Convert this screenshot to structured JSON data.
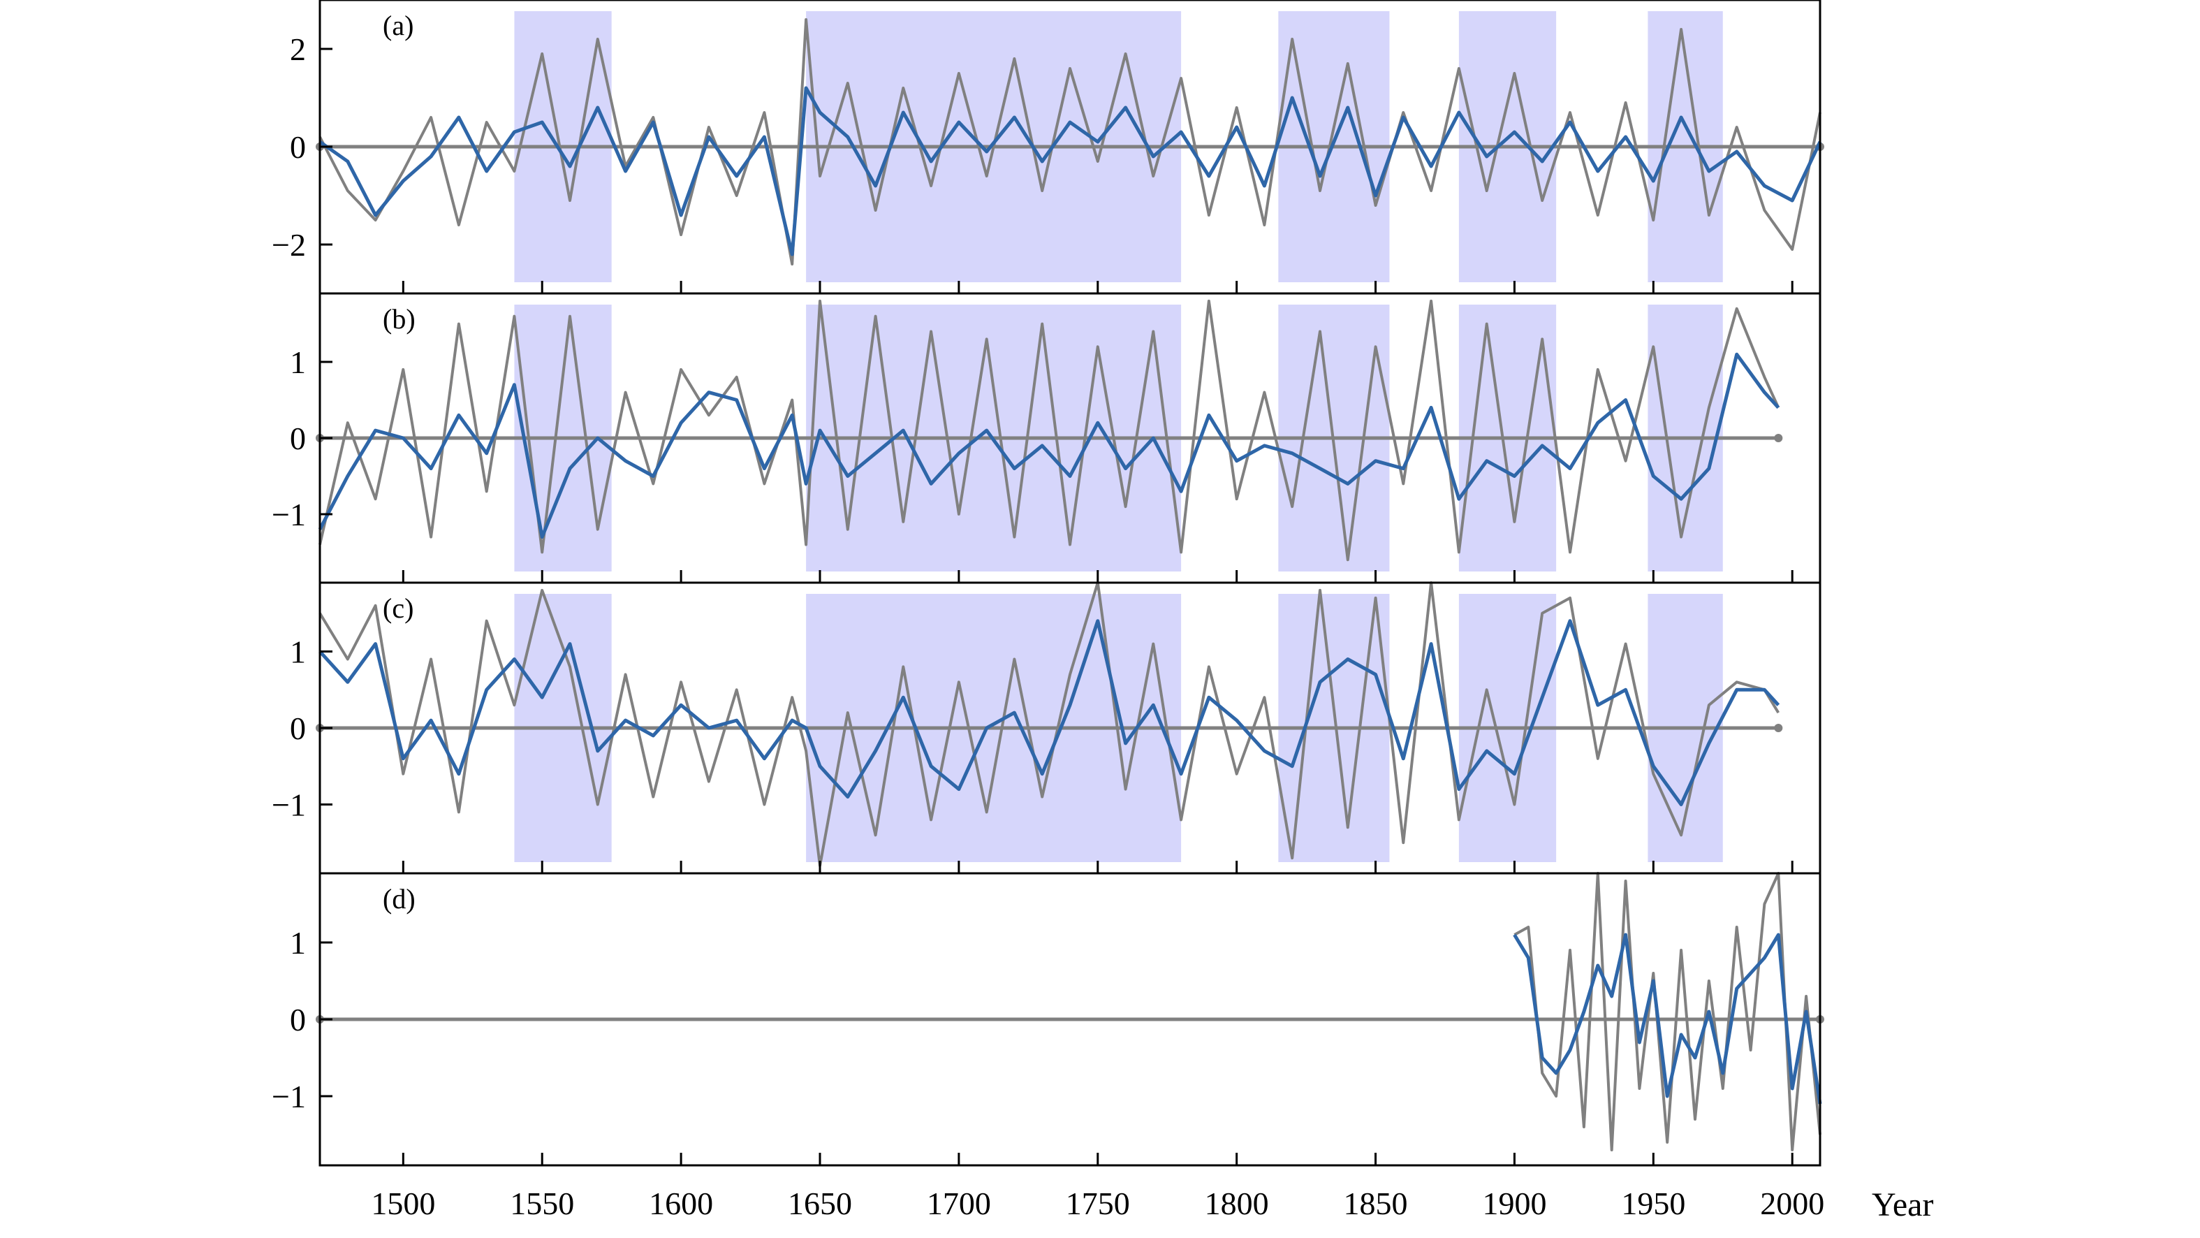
{
  "chart_data": {
    "type": "line",
    "x_label": "Year",
    "x_range": [
      1470,
      2010
    ],
    "x_ticks": [
      1500,
      1550,
      1600,
      1650,
      1700,
      1750,
      1800,
      1850,
      1900,
      1950,
      2000
    ],
    "x_tick_labels": [
      "1500",
      "1550",
      "1600",
      "1650",
      "1700",
      "1750",
      "1800",
      "1850",
      "1900",
      "1950",
      "2000"
    ],
    "shaded_periods": [
      [
        1540,
        1575
      ],
      [
        1645,
        1780
      ],
      [
        1815,
        1855
      ],
      [
        1880,
        1915
      ],
      [
        1948,
        1975
      ]
    ],
    "colors": {
      "annual": "#808080",
      "smoothed": "#2e66a8",
      "shade": "#d6d6fb",
      "zero_line": "#808080",
      "axes": "#000000"
    },
    "panels": [
      {
        "label": "(a)",
        "ylim": [
          -3,
          3
        ],
        "y_ticks": [
          -2,
          0,
          2
        ],
        "y_tick_labels": [
          "−2",
          "0",
          "2"
        ],
        "shaded": true,
        "series_years": [
          1470,
          2010
        ],
        "series": [
          {
            "name": "annual",
            "x": [
              1470,
              1480,
              1490,
              1500,
              1510,
              1520,
              1530,
              1540,
              1550,
              1560,
              1570,
              1580,
              1590,
              1600,
              1610,
              1620,
              1630,
              1640,
              1645,
              1650,
              1660,
              1670,
              1680,
              1690,
              1700,
              1710,
              1720,
              1730,
              1740,
              1750,
              1760,
              1770,
              1780,
              1790,
              1800,
              1810,
              1820,
              1830,
              1840,
              1850,
              1860,
              1870,
              1880,
              1890,
              1900,
              1910,
              1920,
              1930,
              1940,
              1950,
              1960,
              1970,
              1980,
              1990,
              2000,
              2010
            ],
            "y": [
              0.2,
              -0.9,
              -1.5,
              -0.5,
              0.6,
              -1.6,
              0.5,
              -0.5,
              1.9,
              -1.1,
              2.2,
              -0.4,
              0.6,
              -1.8,
              0.4,
              -1.0,
              0.7,
              -2.4,
              2.6,
              -0.6,
              1.3,
              -1.3,
              1.2,
              -0.8,
              1.5,
              -0.6,
              1.8,
              -0.9,
              1.6,
              -0.3,
              1.9,
              -0.6,
              1.4,
              -1.4,
              0.8,
              -1.6,
              2.2,
              -0.9,
              1.7,
              -1.2,
              0.7,
              -0.9,
              1.6,
              -0.9,
              1.5,
              -1.1,
              0.7,
              -1.4,
              0.9,
              -1.5,
              2.4,
              -1.4,
              0.4,
              -1.3,
              -2.1,
              0.7
            ]
          },
          {
            "name": "smoothed",
            "x": [
              1470,
              1480,
              1490,
              1500,
              1510,
              1520,
              1530,
              1540,
              1550,
              1560,
              1570,
              1580,
              1590,
              1600,
              1610,
              1620,
              1630,
              1640,
              1645,
              1650,
              1660,
              1670,
              1680,
              1690,
              1700,
              1710,
              1720,
              1730,
              1740,
              1750,
              1760,
              1770,
              1780,
              1790,
              1800,
              1810,
              1820,
              1830,
              1840,
              1850,
              1860,
              1870,
              1880,
              1890,
              1900,
              1910,
              1920,
              1930,
              1940,
              1950,
              1960,
              1970,
              1980,
              1990,
              2000,
              2010
            ],
            "y": [
              0.1,
              -0.3,
              -1.4,
              -0.7,
              -0.2,
              0.6,
              -0.5,
              0.3,
              0.5,
              -0.4,
              0.8,
              -0.5,
              0.5,
              -1.4,
              0.2,
              -0.6,
              0.2,
              -2.2,
              1.2,
              0.7,
              0.2,
              -0.8,
              0.7,
              -0.3,
              0.5,
              -0.1,
              0.6,
              -0.3,
              0.5,
              0.1,
              0.8,
              -0.2,
              0.3,
              -0.6,
              0.4,
              -0.8,
              1.0,
              -0.6,
              0.8,
              -1.0,
              0.6,
              -0.4,
              0.7,
              -0.2,
              0.3,
              -0.3,
              0.5,
              -0.5,
              0.2,
              -0.7,
              0.6,
              -0.5,
              -0.1,
              -0.8,
              -1.1,
              0.1
            ]
          }
        ]
      },
      {
        "label": "(b)",
        "ylim": [
          -1.9,
          1.9
        ],
        "y_ticks": [
          -1,
          0,
          1
        ],
        "y_tick_labels": [
          "−1",
          "0",
          "1"
        ],
        "shaded": true,
        "series_years": [
          1470,
          1995
        ],
        "series": [
          {
            "name": "annual",
            "x": [
              1470,
              1480,
              1490,
              1500,
              1510,
              1520,
              1530,
              1540,
              1550,
              1560,
              1570,
              1580,
              1590,
              1600,
              1610,
              1620,
              1630,
              1640,
              1645,
              1650,
              1660,
              1670,
              1680,
              1690,
              1700,
              1710,
              1720,
              1730,
              1740,
              1750,
              1760,
              1770,
              1780,
              1790,
              1800,
              1810,
              1820,
              1830,
              1840,
              1850,
              1860,
              1870,
              1880,
              1890,
              1900,
              1910,
              1920,
              1930,
              1940,
              1950,
              1960,
              1970,
              1980,
              1990,
              1995
            ],
            "y": [
              -1.4,
              0.2,
              -0.8,
              0.9,
              -1.3,
              1.5,
              -0.7,
              1.6,
              -1.5,
              1.6,
              -1.2,
              0.6,
              -0.6,
              0.9,
              0.3,
              0.8,
              -0.6,
              0.5,
              -1.4,
              1.8,
              -1.2,
              1.6,
              -1.1,
              1.4,
              -1.0,
              1.3,
              -1.3,
              1.5,
              -1.4,
              1.2,
              -0.9,
              1.4,
              -1.5,
              1.8,
              -0.8,
              0.6,
              -0.9,
              1.4,
              -1.6,
              1.2,
              -0.6,
              1.8,
              -1.5,
              1.5,
              -1.1,
              1.3,
              -1.5,
              0.9,
              -0.3,
              1.2,
              -1.3,
              0.4,
              1.7,
              0.8,
              0.4
            ]
          },
          {
            "name": "smoothed",
            "x": [
              1470,
              1480,
              1490,
              1500,
              1510,
              1520,
              1530,
              1540,
              1550,
              1560,
              1570,
              1580,
              1590,
              1600,
              1610,
              1620,
              1630,
              1640,
              1645,
              1650,
              1660,
              1670,
              1680,
              1690,
              1700,
              1710,
              1720,
              1730,
              1740,
              1750,
              1760,
              1770,
              1780,
              1790,
              1800,
              1810,
              1820,
              1830,
              1840,
              1850,
              1860,
              1870,
              1880,
              1890,
              1900,
              1910,
              1920,
              1930,
              1940,
              1950,
              1960,
              1970,
              1980,
              1990,
              1995
            ],
            "y": [
              -1.2,
              -0.5,
              0.1,
              0.0,
              -0.4,
              0.3,
              -0.2,
              0.7,
              -1.3,
              -0.4,
              0.0,
              -0.3,
              -0.5,
              0.2,
              0.6,
              0.5,
              -0.4,
              0.3,
              -0.6,
              0.1,
              -0.5,
              -0.2,
              0.1,
              -0.6,
              -0.2,
              0.1,
              -0.4,
              -0.1,
              -0.5,
              0.2,
              -0.4,
              0.0,
              -0.7,
              0.3,
              -0.3,
              -0.1,
              -0.2,
              -0.4,
              -0.6,
              -0.3,
              -0.4,
              0.4,
              -0.8,
              -0.3,
              -0.5,
              -0.1,
              -0.4,
              0.2,
              0.5,
              -0.5,
              -0.8,
              -0.4,
              1.1,
              0.6,
              0.4
            ]
          }
        ]
      },
      {
        "label": "(c)",
        "ylim": [
          -1.9,
          1.9
        ],
        "y_ticks": [
          -1,
          0,
          1
        ],
        "y_tick_labels": [
          "−1",
          "0",
          "1"
        ],
        "shaded": true,
        "series_years": [
          1470,
          1995
        ],
        "series": [
          {
            "name": "annual",
            "x": [
              1470,
              1480,
              1490,
              1500,
              1510,
              1520,
              1530,
              1540,
              1550,
              1560,
              1570,
              1580,
              1590,
              1600,
              1610,
              1620,
              1630,
              1640,
              1645,
              1650,
              1660,
              1670,
              1680,
              1690,
              1700,
              1710,
              1720,
              1730,
              1740,
              1750,
              1760,
              1770,
              1780,
              1790,
              1800,
              1810,
              1820,
              1830,
              1840,
              1850,
              1860,
              1870,
              1880,
              1890,
              1900,
              1910,
              1920,
              1930,
              1940,
              1950,
              1960,
              1970,
              1980,
              1990,
              1995
            ],
            "y": [
              1.5,
              0.9,
              1.6,
              -0.6,
              0.9,
              -1.1,
              1.4,
              0.3,
              1.8,
              0.8,
              -1.0,
              0.7,
              -0.9,
              0.6,
              -0.7,
              0.5,
              -1.0,
              0.4,
              -0.3,
              -1.8,
              0.2,
              -1.4,
              0.8,
              -1.2,
              0.6,
              -1.1,
              0.9,
              -0.9,
              0.7,
              1.9,
              -0.8,
              1.1,
              -1.2,
              0.8,
              -0.6,
              0.4,
              -1.7,
              1.8,
              -1.3,
              1.7,
              -1.5,
              1.9,
              -1.2,
              0.5,
              -1.0,
              1.5,
              1.7,
              -0.4,
              1.1,
              -0.6,
              -1.4,
              0.3,
              0.6,
              0.5,
              0.2
            ]
          },
          {
            "name": "smoothed",
            "x": [
              1470,
              1480,
              1490,
              1500,
              1510,
              1520,
              1530,
              1540,
              1550,
              1560,
              1570,
              1580,
              1590,
              1600,
              1610,
              1620,
              1630,
              1640,
              1645,
              1650,
              1660,
              1670,
              1680,
              1690,
              1700,
              1710,
              1720,
              1730,
              1740,
              1750,
              1760,
              1770,
              1780,
              1790,
              1800,
              1810,
              1820,
              1830,
              1840,
              1850,
              1860,
              1870,
              1880,
              1890,
              1900,
              1910,
              1920,
              1930,
              1940,
              1950,
              1960,
              1970,
              1980,
              1990,
              1995
            ],
            "y": [
              1.0,
              0.6,
              1.1,
              -0.4,
              0.1,
              -0.6,
              0.5,
              0.9,
              0.4,
              1.1,
              -0.3,
              0.1,
              -0.1,
              0.3,
              0.0,
              0.1,
              -0.4,
              0.1,
              0.0,
              -0.5,
              -0.9,
              -0.3,
              0.4,
              -0.5,
              -0.8,
              0.0,
              0.2,
              -0.6,
              0.3,
              1.4,
              -0.2,
              0.3,
              -0.6,
              0.4,
              0.1,
              -0.3,
              -0.5,
              0.6,
              0.9,
              0.7,
              -0.4,
              1.1,
              -0.8,
              -0.3,
              -0.6,
              0.4,
              1.4,
              0.3,
              0.5,
              -0.5,
              -1.0,
              -0.2,
              0.5,
              0.5,
              0.3
            ]
          }
        ]
      },
      {
        "label": "(d)",
        "ylim": [
          -1.9,
          1.9
        ],
        "y_ticks": [
          -1,
          0,
          1
        ],
        "y_tick_labels": [
          "−1",
          "0",
          "1"
        ],
        "shaded": false,
        "series_years": [
          1470,
          2010
        ],
        "series": [
          {
            "name": "annual",
            "x": [
              1900,
              1905,
              1910,
              1915,
              1920,
              1925,
              1930,
              1935,
              1940,
              1945,
              1950,
              1955,
              1960,
              1965,
              1970,
              1975,
              1980,
              1985,
              1990,
              1995,
              2000,
              2005,
              2010
            ],
            "y": [
              1.1,
              1.2,
              -0.7,
              -1.0,
              0.9,
              -1.4,
              1.9,
              -1.7,
              1.8,
              -0.9,
              0.6,
              -1.6,
              0.9,
              -1.3,
              0.5,
              -0.9,
              1.2,
              -0.4,
              1.5,
              1.9,
              -1.7,
              0.3,
              -1.5
            ]
          },
          {
            "name": "smoothed",
            "x": [
              1900,
              1905,
              1910,
              1915,
              1920,
              1925,
              1930,
              1935,
              1940,
              1945,
              1950,
              1955,
              1960,
              1965,
              1970,
              1975,
              1980,
              1985,
              1990,
              1995,
              2000,
              2005,
              2010
            ],
            "y": [
              1.1,
              0.8,
              -0.5,
              -0.7,
              -0.4,
              0.1,
              0.7,
              0.3,
              1.1,
              -0.3,
              0.5,
              -1.0,
              -0.2,
              -0.5,
              0.1,
              -0.7,
              0.4,
              0.6,
              0.8,
              1.1,
              -0.9,
              0.1,
              -1.1
            ]
          }
        ]
      }
    ]
  }
}
